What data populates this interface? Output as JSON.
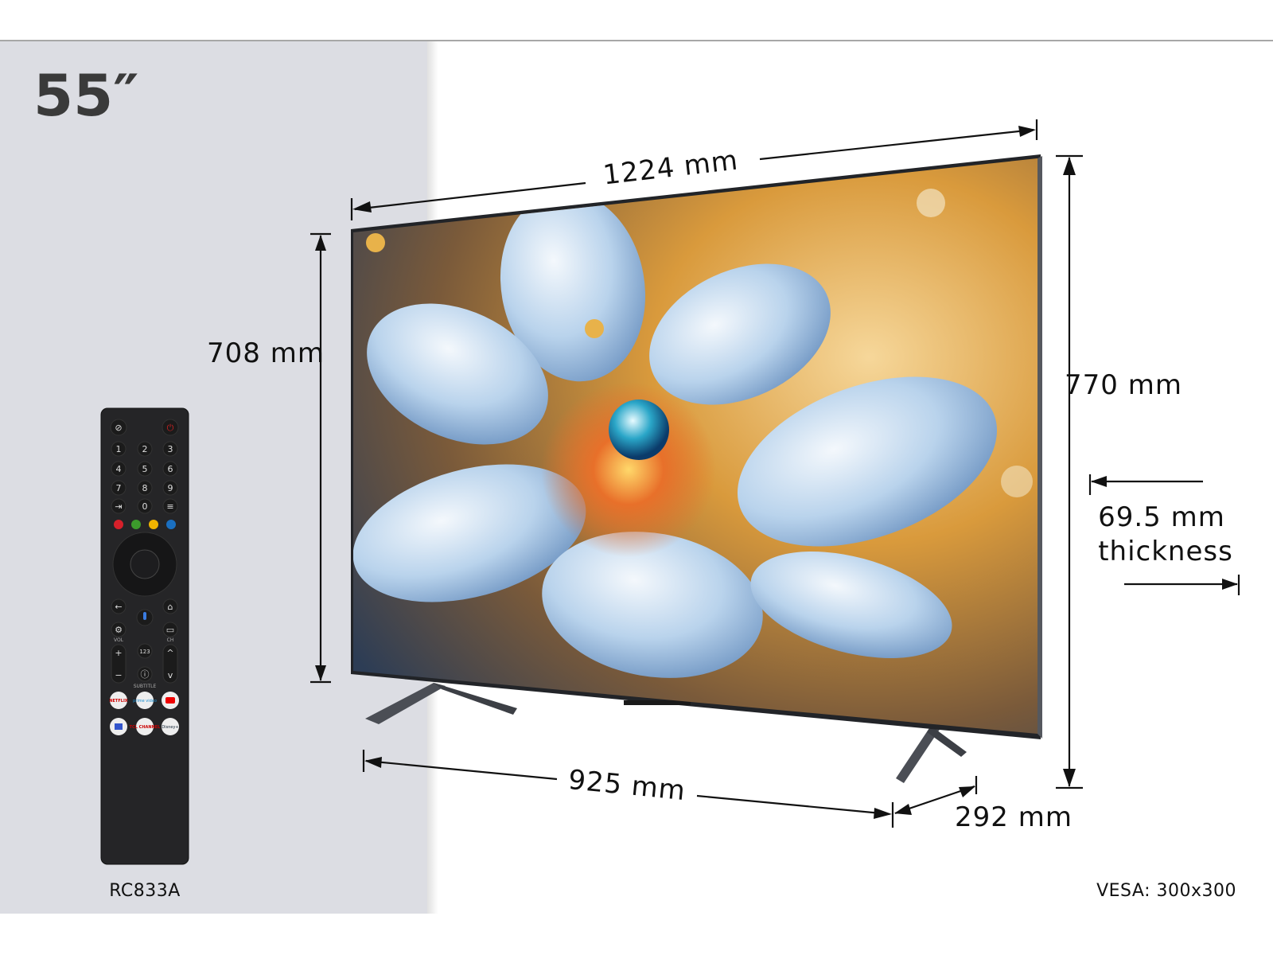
{
  "size_label": "55″",
  "dimensions": {
    "width": "1224 mm",
    "screen_height": "708 mm",
    "total_height": "770 mm",
    "thickness_value": "69.5 mm",
    "thickness_label": "thickness",
    "stand_width": "925 mm",
    "stand_depth": "292 mm"
  },
  "vesa": "VESA: 300x300",
  "remote": {
    "model": "RC833A",
    "number_keys": [
      "1",
      "2",
      "3",
      "4",
      "5",
      "6",
      "7",
      "8",
      "9",
      "0"
    ],
    "vol_label": "VOL",
    "ch_label": "CH",
    "num_key": "123",
    "subtitle_label": "SUBTITLE",
    "apps": [
      "NETFLIX",
      "prime video",
      "YouTube",
      "TCL CHANNEL",
      "Disney+"
    ],
    "color_keys": [
      "#d6202a",
      "#3c9a2c",
      "#f0b400",
      "#1a6fc0"
    ],
    "icons": [
      "mute-icon",
      "power-icon",
      "input-icon",
      "menu-icon",
      "back-icon",
      "mic-icon",
      "home-icon",
      "settings-icon",
      "tv-icon",
      "info-icon"
    ]
  },
  "colors": {
    "panel": "#dcdde3",
    "accent_gold": "#e8a93a",
    "petal_blue": "#9fc3e6"
  }
}
